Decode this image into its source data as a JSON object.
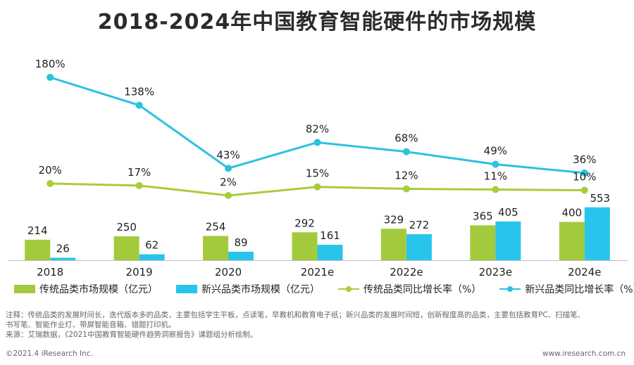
{
  "title": "2018-2024年中国教育智能硬件的市场规模",
  "chart_data": {
    "type": "bar",
    "categories": [
      "2018",
      "2019",
      "2020",
      "2021e",
      "2022e",
      "2023e",
      "2024e"
    ],
    "series": [
      {
        "name": "传统品类市场规模（亿元）",
        "type": "bar",
        "axis": "left",
        "values": [
          214,
          250,
          254,
          292,
          329,
          365,
          400
        ]
      },
      {
        "name": "新兴品类市场规模（亿元）",
        "type": "bar",
        "axis": "left",
        "values": [
          26,
          62,
          89,
          161,
          272,
          405,
          553
        ]
      },
      {
        "name": "传统品类同比增长率（%）",
        "type": "line",
        "axis": "right",
        "values": [
          20,
          17,
          2,
          15,
          12,
          11,
          10
        ],
        "labels": [
          "20%",
          "17%",
          "2%",
          "15%",
          "12%",
          "11%",
          "10%"
        ]
      },
      {
        "name": "新兴品类同比增长率（%）",
        "type": "line",
        "axis": "right",
        "values": [
          180,
          138,
          43,
          82,
          68,
          49,
          36
        ],
        "labels": [
          "180%",
          "138%",
          "43%",
          "82%",
          "68%",
          "49%",
          "36%"
        ]
      }
    ],
    "legend_position": "bottom",
    "grid": false,
    "colors": {
      "traditional": "#a3ca3c",
      "emerging": "#29c4eb",
      "traditional_line": "#a9cc3a",
      "emerging_line": "#2cc1df"
    }
  },
  "notes": {
    "line1": "注释：传统品类的发展时间长，迭代版本多的品类，主要包括学生平板，点读笔，早教机和教育电子纸；新兴品类的发展时间短，创新程度高的品类，主要包括教育PC、扫描笔、",
    "line2": "书写笔、智能作业灯、带屏智能音箱、错题打印机。",
    "line3": "来源：艾瑞数据，《2021中国教育智能硬件趋势洞察报告》课题组分析绘制。"
  },
  "footer": {
    "left": "©2021.4 iResearch Inc.",
    "right": "www.iresearch.com.cn"
  }
}
